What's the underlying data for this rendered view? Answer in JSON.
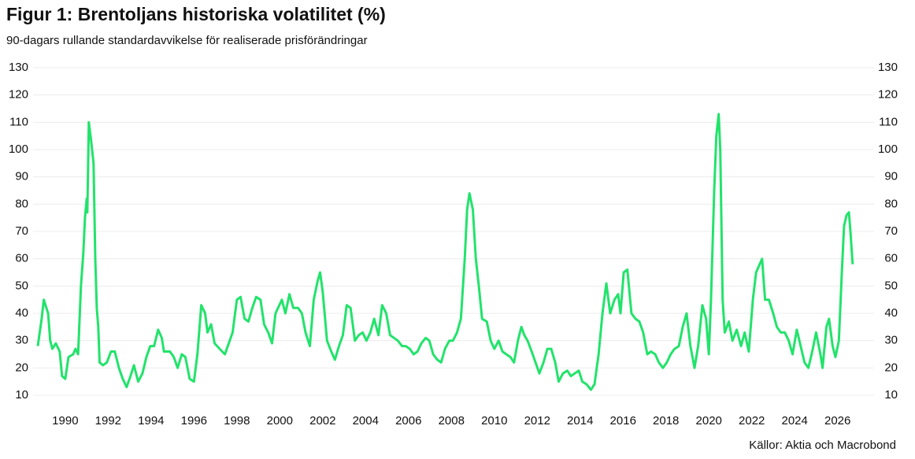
{
  "chart_data": {
    "type": "line",
    "title": "Figur 1: Brentoljans historiska volatilitet (%)",
    "subtitle": "90-dagars rullande standardavvikelse för realiserade prisförändringar",
    "source": "Källor: Aktia och Macrobond",
    "color": "#22e36b",
    "grid": true,
    "xlim": [
      1988.5,
      2027.7
    ],
    "xticks": [
      1990,
      1992,
      1994,
      1996,
      1998,
      2000,
      2002,
      2004,
      2006,
      2008,
      2010,
      2012,
      2014,
      2016,
      2018,
      2020,
      2022,
      2024,
      2026
    ],
    "ylim": [
      10,
      130
    ],
    "yticks": [
      10,
      20,
      30,
      40,
      50,
      60,
      70,
      80,
      90,
      100,
      110,
      120,
      130
    ],
    "y2lim": [
      10,
      130
    ],
    "y2ticks": [
      10,
      20,
      30,
      40,
      50,
      60,
      70,
      80,
      90,
      100,
      110,
      120,
      130
    ],
    "x": [
      1988.72,
      1988.9,
      1989.0,
      1989.2,
      1989.3,
      1989.4,
      1989.56,
      1989.74,
      1989.85,
      1990.0,
      1990.15,
      1990.37,
      1990.48,
      1990.6,
      1990.73,
      1990.84,
      1990.92,
      1991.0,
      1991.03,
      1991.1,
      1991.21,
      1991.32,
      1991.4,
      1991.47,
      1991.54,
      1991.6,
      1991.76,
      1991.94,
      1992.13,
      1992.31,
      1992.5,
      1992.68,
      1992.86,
      1993.04,
      1993.2,
      1993.4,
      1993.6,
      1993.78,
      1993.96,
      1994.14,
      1994.33,
      1994.5,
      1994.6,
      1994.88,
      1995.06,
      1995.24,
      1995.43,
      1995.6,
      1995.8,
      1996.0,
      1996.16,
      1996.34,
      1996.52,
      1996.63,
      1996.8,
      1996.96,
      1997.2,
      1997.44,
      1997.62,
      1997.8,
      1998.0,
      1998.17,
      1998.36,
      1998.54,
      1998.72,
      1998.9,
      1999.1,
      1999.27,
      1999.46,
      1999.64,
      1999.8,
      2000.1,
      2000.26,
      2000.45,
      2000.63,
      2000.85,
      2001.03,
      2001.2,
      2001.4,
      2001.58,
      2001.77,
      2001.88,
      2002.0,
      2002.2,
      2002.4,
      2002.57,
      2002.76,
      2002.94,
      2003.12,
      2003.3,
      2003.5,
      2003.68,
      2003.86,
      2004.04,
      2004.22,
      2004.4,
      2004.6,
      2004.77,
      2004.96,
      2005.14,
      2005.32,
      2005.5,
      2005.7,
      2005.87,
      2006.06,
      2006.24,
      2006.42,
      2006.6,
      2006.8,
      2006.97,
      2007.15,
      2007.34,
      2007.52,
      2007.7,
      2007.9,
      2008.07,
      2008.26,
      2008.44,
      2008.62,
      2008.73,
      2008.84,
      2009.0,
      2009.14,
      2009.28,
      2009.43,
      2009.65,
      2009.83,
      2010.0,
      2010.2,
      2010.38,
      2010.56,
      2010.75,
      2010.92,
      2011.1,
      2011.26,
      2011.4,
      2011.55,
      2011.74,
      2011.92,
      2012.1,
      2012.29,
      2012.47,
      2012.65,
      2012.84,
      2013.0,
      2013.2,
      2013.4,
      2013.57,
      2013.75,
      2013.94,
      2014.1,
      2014.3,
      2014.5,
      2014.67,
      2014.86,
      2015.04,
      2015.22,
      2015.4,
      2015.6,
      2015.77,
      2015.88,
      2016.03,
      2016.2,
      2016.39,
      2016.58,
      2016.76,
      2016.94,
      2017.13,
      2017.3,
      2017.5,
      2017.67,
      2017.86,
      2018.04,
      2018.22,
      2018.4,
      2018.6,
      2018.78,
      2018.96,
      2019.14,
      2019.33,
      2019.5,
      2019.7,
      2019.87,
      2020.0,
      2020.1,
      2020.25,
      2020.35,
      2020.46,
      2020.53,
      2020.64,
      2020.74,
      2020.93,
      2021.1,
      2021.3,
      2021.5,
      2021.67,
      2021.86,
      2022.05,
      2022.2,
      2022.37,
      2022.48,
      2022.62,
      2022.8,
      2023.0,
      2023.17,
      2023.35,
      2023.54,
      2023.72,
      2023.9,
      2024.1,
      2024.28,
      2024.46,
      2024.64,
      2024.82,
      2025.0,
      2025.2,
      2025.3,
      2025.48,
      2025.6,
      2025.77,
      2025.9,
      2026.06,
      2026.2,
      2026.3,
      2026.42,
      2026.53,
      2026.6,
      2026.7
    ],
    "values": [
      28,
      38,
      45,
      40,
      30,
      27,
      29,
      26,
      17,
      16,
      24,
      25,
      27,
      25,
      50,
      62,
      75,
      82,
      77,
      110,
      103,
      95,
      60,
      42,
      35,
      22,
      21,
      22,
      26,
      26,
      20,
      16,
      13,
      17,
      21,
      15,
      18,
      24,
      28,
      28,
      34,
      31,
      26,
      26,
      24,
      20,
      25,
      24,
      16,
      15,
      25,
      43,
      40,
      33,
      36,
      29,
      27,
      25,
      29,
      33,
      45,
      46,
      38,
      37,
      42,
      46,
      45,
      36,
      33,
      29,
      40,
      45,
      40,
      47,
      42,
      42,
      40,
      33,
      28,
      45,
      52,
      55,
      48,
      30,
      26,
      23,
      28,
      32,
      43,
      42,
      30,
      32,
      33,
      30,
      33,
      38,
      32,
      43,
      40,
      32,
      31,
      30,
      28,
      28,
      27,
      25,
      26,
      29,
      31,
      30,
      25,
      23,
      22,
      27,
      30,
      30,
      33,
      38,
      60,
      78,
      84,
      78,
      60,
      50,
      38,
      37,
      30,
      27,
      30,
      26,
      25,
      24,
      22,
      30,
      35,
      32,
      30,
      26,
      22,
      18,
      22,
      27,
      27,
      22,
      15,
      18,
      19,
      17,
      18,
      19,
      15,
      14,
      12,
      14,
      25,
      40,
      51,
      40,
      45,
      47,
      40,
      55,
      56,
      40,
      38,
      37,
      33,
      25,
      26,
      25,
      22,
      20,
      22,
      25,
      27,
      28,
      35,
      40,
      28,
      20,
      28,
      43,
      38,
      25,
      45,
      85,
      105,
      113,
      100,
      45,
      33,
      37,
      30,
      34,
      28,
      33,
      26,
      45,
      55,
      58,
      60,
      45,
      45,
      40,
      35,
      33,
      33,
      30,
      25,
      34,
      28,
      22,
      20,
      26,
      33,
      25,
      20,
      35,
      38,
      28,
      24,
      30,
      55,
      72,
      76,
      77,
      70,
      58
    ]
  }
}
